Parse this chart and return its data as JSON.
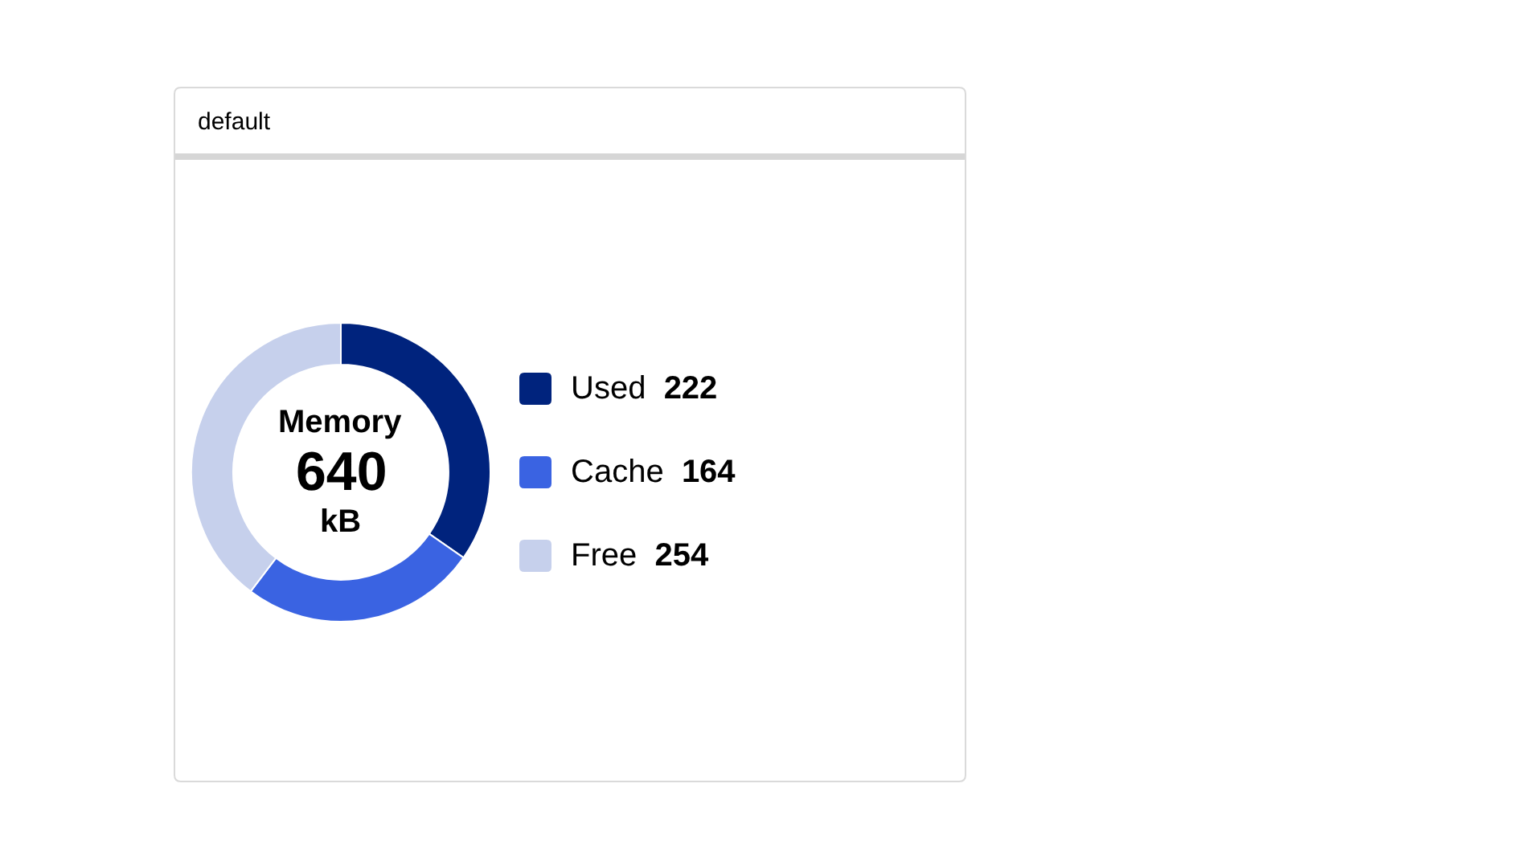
{
  "chart_data": {
    "type": "donut",
    "title": "default",
    "categories": [
      "Used",
      "Cache",
      "Free"
    ],
    "values": [
      222,
      164,
      254
    ],
    "colors": [
      "#00237d",
      "#3a63e2",
      "#c6d0ec"
    ],
    "annotations": [
      "Memory",
      "640",
      "kB"
    ],
    "data_labels": true,
    "legend": "right"
  }
}
